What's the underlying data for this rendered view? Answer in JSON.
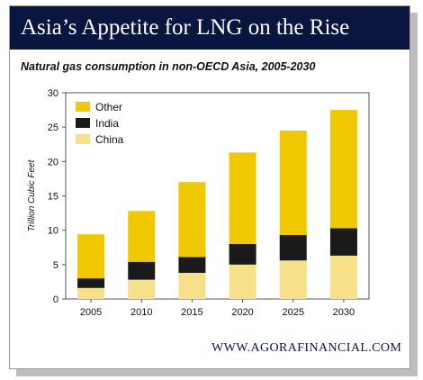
{
  "banner": {
    "title": "Asia’s Appetite for LNG on the Rise"
  },
  "footer": {
    "text": "WWW.AGORAFINANCIAL.COM"
  },
  "colors": {
    "banner_bg": "#0b1640",
    "other": "#f0c800",
    "india": "#1a1a1a",
    "china": "#f6e08a"
  },
  "chart_data": {
    "type": "bar",
    "stacked": true,
    "title": "Natural gas consumption in non-OECD Asia, 2005-2030",
    "xlabel": "",
    "ylabel": "Trillion Cubic Feet",
    "ylim": [
      0,
      30
    ],
    "yticks": [
      "0",
      "5",
      "10",
      "15",
      "20",
      "25",
      "30"
    ],
    "categories": [
      "2005",
      "2010",
      "2015",
      "2020",
      "2025",
      "2030"
    ],
    "series": [
      {
        "name": "China",
        "color": "#f6e08a",
        "values": [
          1.6,
          2.8,
          3.8,
          5.0,
          5.6,
          6.3
        ]
      },
      {
        "name": "India",
        "color": "#1a1a1a",
        "values": [
          1.4,
          2.6,
          2.3,
          3.0,
          3.7,
          4.0
        ]
      },
      {
        "name": "Other",
        "color": "#f0c800",
        "values": [
          6.4,
          7.4,
          10.9,
          13.3,
          15.2,
          17.2
        ]
      }
    ],
    "legend_order": [
      "Other",
      "India",
      "China"
    ],
    "legend_position": "top-left",
    "grid": false
  }
}
